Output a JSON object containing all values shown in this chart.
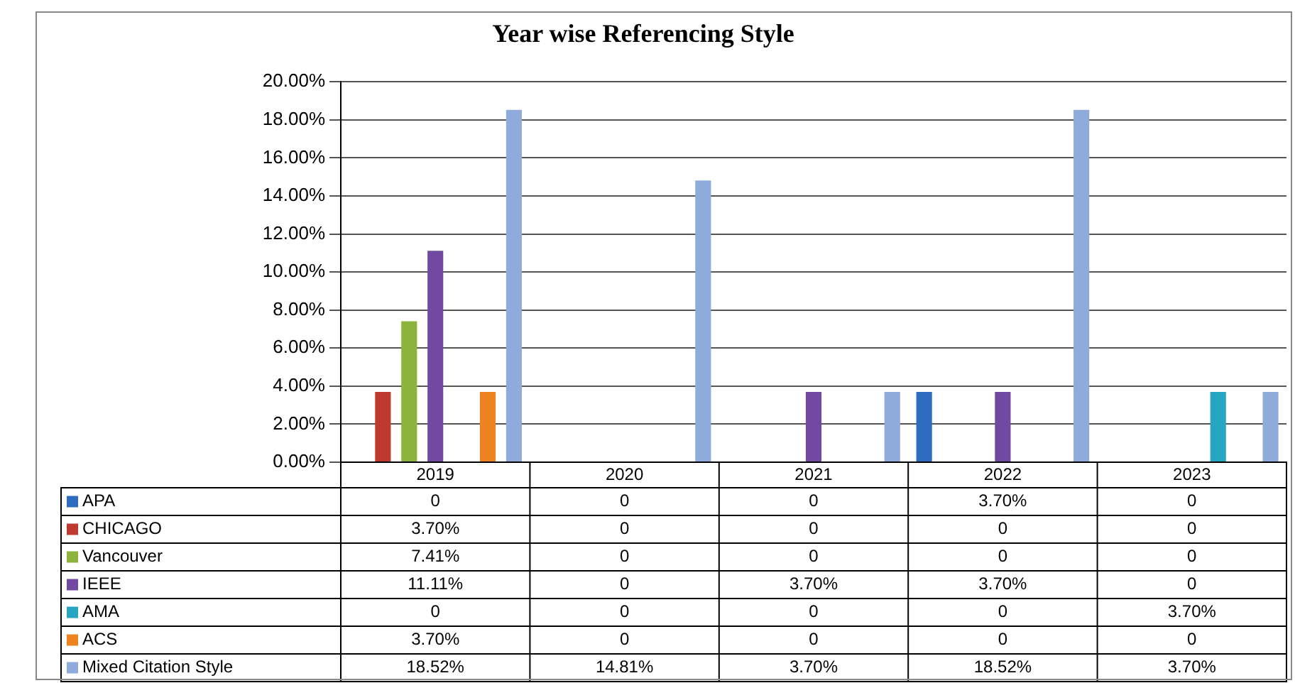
{
  "chart_data": {
    "type": "bar",
    "title": "Year wise Referencing Style",
    "categories": [
      "2019",
      "2020",
      "2021",
      "2022",
      "2023"
    ],
    "series": [
      {
        "name": "APA",
        "color": "#2e6cc0",
        "values": [
          0,
          0,
          0,
          3.7,
          0
        ],
        "value_labels": [
          "0",
          "0",
          "0",
          "3.70%",
          "0"
        ]
      },
      {
        "name": "CHICAGO",
        "color": "#c0392f",
        "values": [
          3.7,
          0,
          0,
          0,
          0
        ],
        "value_labels": [
          "3.70%",
          "0",
          "0",
          "0",
          "0"
        ]
      },
      {
        "name": "Vancouver",
        "color": "#8cb33c",
        "values": [
          7.41,
          0,
          0,
          0,
          0
        ],
        "value_labels": [
          "7.41%",
          "0",
          "0",
          "0",
          "0"
        ]
      },
      {
        "name": "IEEE",
        "color": "#7149a0",
        "values": [
          11.11,
          0,
          3.7,
          3.7,
          0
        ],
        "value_labels": [
          "11.11%",
          "0",
          "3.70%",
          "3.70%",
          "0"
        ]
      },
      {
        "name": "AMA",
        "color": "#26a6c0",
        "values": [
          0,
          0,
          0,
          0,
          3.7
        ],
        "value_labels": [
          "0",
          "0",
          "0",
          "0",
          "3.70%"
        ]
      },
      {
        "name": "ACS",
        "color": "#ee8420",
        "values": [
          3.7,
          0,
          0,
          0,
          0
        ],
        "value_labels": [
          "3.70%",
          "0",
          "0",
          "0",
          "0"
        ]
      },
      {
        "name": "Mixed Citation Style",
        "color": "#8eabdc",
        "values": [
          18.52,
          14.81,
          3.7,
          18.52,
          3.7
        ],
        "value_labels": [
          "18.52%",
          "14.81%",
          "3.70%",
          "18.52%",
          "3.70%"
        ]
      }
    ],
    "ylim": [
      0,
      20
    ],
    "yticks": [
      {
        "value": 0,
        "label": "0.00%"
      },
      {
        "value": 2,
        "label": "2.00%"
      },
      {
        "value": 4,
        "label": "4.00%"
      },
      {
        "value": 6,
        "label": "6.00%"
      },
      {
        "value": 8,
        "label": "8.00%"
      },
      {
        "value": 10,
        "label": "10.00%"
      },
      {
        "value": 12,
        "label": "12.00%"
      },
      {
        "value": 14,
        "label": "14.00%"
      },
      {
        "value": 16,
        "label": "16.00%"
      },
      {
        "value": 18,
        "label": "18.00%"
      },
      {
        "value": 20,
        "label": "20.00%"
      }
    ],
    "grid": "y",
    "legend": "bottom left"
  }
}
